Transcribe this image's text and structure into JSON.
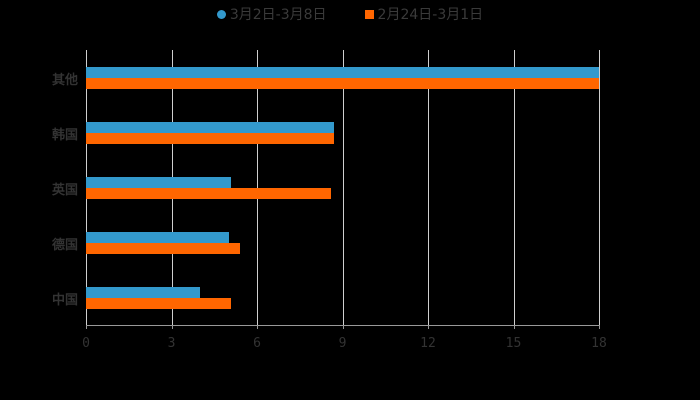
{
  "colors": {
    "series1": "#3399CC",
    "series2": "#FF6600",
    "background": "#000000"
  },
  "legend": [
    {
      "label": "3月2日-3月8日",
      "marker": "circle",
      "color": "#3399CC"
    },
    {
      "label": "2月24日-3月1日",
      "marker": "square",
      "color": "#FF6600"
    }
  ],
  "chart_data": {
    "type": "bar",
    "orientation": "horizontal",
    "title": "",
    "categories": [
      "其他",
      "韩国",
      "英国",
      "德国",
      "中国"
    ],
    "series": [
      {
        "name": "3月2日-3月8日",
        "values": [
          18,
          8.7,
          5.1,
          5.0,
          4.0
        ]
      },
      {
        "name": "2月24日-3月1日",
        "values": [
          18,
          8.7,
          8.6,
          5.4,
          5.1
        ]
      }
    ],
    "xlabel": "",
    "ylabel": "",
    "xlim": [
      0,
      18
    ],
    "xticks": [
      "0",
      "3",
      "6",
      "9",
      "12",
      "15",
      "18"
    ],
    "grid": true,
    "legend_position": "top"
  }
}
